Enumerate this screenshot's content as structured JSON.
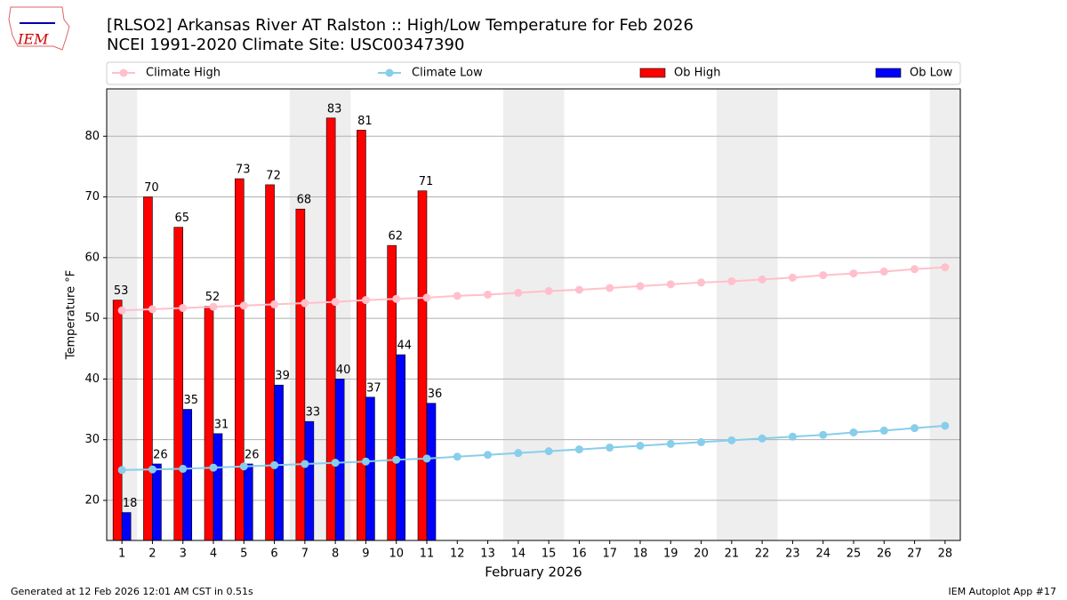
{
  "logo": "IEM",
  "footer_left": "Generated at 12 Feb 2026 12:01 AM CST in 0.51s",
  "footer_right": "IEM Autoplot App #17",
  "chart_data": {
    "type": "bar",
    "title": "[RLSO2] Arkansas River  AT Ralston :: High/Low Temperature for Feb 2026",
    "subtitle": "NCEI 1991-2020 Climate Site: USC00347390",
    "x_label": "February 2026",
    "y_label": "Temperature °F",
    "categories": [
      "1",
      "2",
      "3",
      "4",
      "5",
      "6",
      "7",
      "8",
      "9",
      "10",
      "11",
      "12",
      "13",
      "14",
      "15",
      "16",
      "17",
      "18",
      "19",
      "20",
      "21",
      "22",
      "23",
      "24",
      "25",
      "26",
      "27",
      "28"
    ],
    "ylim": [
      13.4,
      87.8
    ],
    "yticks": [
      20,
      30,
      40,
      50,
      60,
      70,
      80
    ],
    "grid": true,
    "legend": "top",
    "series": [
      {
        "name": "Climate High",
        "type": "line",
        "color": "#ffc0cb",
        "values": [
          51.3,
          51.5,
          51.7,
          51.9,
          52.1,
          52.3,
          52.5,
          52.7,
          53.0,
          53.2,
          53.4,
          53.7,
          53.9,
          54.2,
          54.5,
          54.7,
          55.0,
          55.3,
          55.6,
          55.9,
          56.1,
          56.4,
          56.7,
          57.1,
          57.4,
          57.7,
          58.1,
          58.4
        ]
      },
      {
        "name": "Climate Low",
        "type": "line",
        "color": "#87ceeb",
        "values": [
          25.0,
          25.1,
          25.2,
          25.4,
          25.6,
          25.8,
          26.0,
          26.2,
          26.4,
          26.7,
          26.9,
          27.2,
          27.5,
          27.8,
          28.1,
          28.4,
          28.7,
          29.0,
          29.3,
          29.6,
          29.9,
          30.2,
          30.5,
          30.8,
          31.2,
          31.5,
          31.9,
          32.3
        ]
      },
      {
        "name": "Ob High",
        "type": "bar",
        "color": "#ff0000",
        "values": [
          53,
          70,
          65,
          52,
          73,
          72,
          68,
          83,
          81,
          62,
          71,
          null,
          null,
          null,
          null,
          null,
          null,
          null,
          null,
          null,
          null,
          null,
          null,
          null,
          null,
          null,
          null,
          null
        ]
      },
      {
        "name": "Ob Low",
        "type": "bar",
        "color": "#0000ff",
        "values": [
          18,
          26,
          35,
          31,
          26,
          39,
          33,
          40,
          37,
          44,
          36,
          null,
          null,
          null,
          null,
          null,
          null,
          null,
          null,
          null,
          null,
          null,
          null,
          null,
          null,
          null,
          null,
          null
        ]
      }
    ]
  }
}
